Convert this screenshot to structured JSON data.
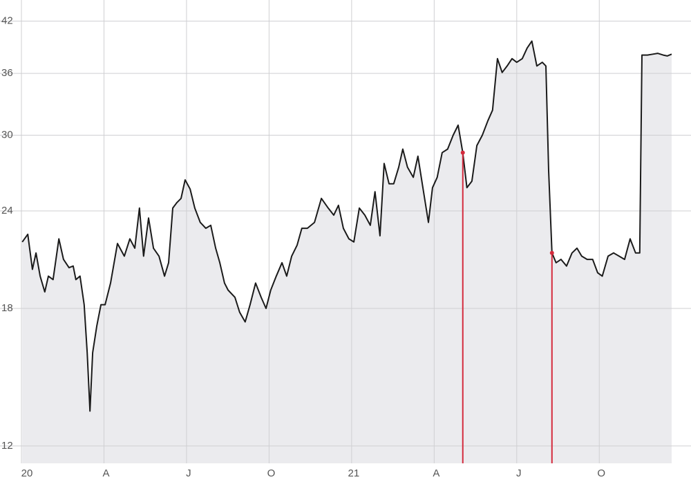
{
  "chart_data": {
    "type": "line",
    "xlim": [
      0,
      23.63
    ],
    "xticks": [
      {
        "value": 0,
        "label": "20"
      },
      {
        "value": 3,
        "label": "A"
      },
      {
        "value": 6,
        "label": "J"
      },
      {
        "value": 9,
        "label": "O"
      },
      {
        "value": 12,
        "label": "21"
      },
      {
        "value": 15,
        "label": "A"
      },
      {
        "value": 18,
        "label": "J"
      },
      {
        "value": 21,
        "label": "O"
      }
    ],
    "ylim": [
      11.4,
      44.7
    ],
    "yticks": [
      12,
      18,
      24,
      30,
      36,
      42
    ],
    "log_scale_y": true,
    "grid": true,
    "area_color": "#ebebee",
    "series": [
      {
        "color": "#1a1a1a",
        "x": [
          0.03,
          0.23,
          0.4,
          0.53,
          0.68,
          0.85,
          0.98,
          1.15,
          1.36,
          1.53,
          1.73,
          1.88,
          1.98,
          2.13,
          2.28,
          2.39,
          2.49,
          2.59,
          2.74,
          2.89,
          3.04,
          3.24,
          3.49,
          3.74,
          3.94,
          4.12,
          4.29,
          4.44,
          4.62,
          4.8,
          5.0,
          5.2,
          5.35,
          5.5,
          5.65,
          5.8,
          5.95,
          6.13,
          6.3,
          6.5,
          6.7,
          6.88,
          7.06,
          7.21,
          7.38,
          7.51,
          7.76,
          7.93,
          8.13,
          8.31,
          8.51,
          8.71,
          8.89,
          9.06,
          9.26,
          9.47,
          9.64,
          9.82,
          10.02,
          10.19,
          10.39,
          10.65,
          10.9,
          11.15,
          11.35,
          11.52,
          11.7,
          11.9,
          12.08,
          12.28,
          12.48,
          12.68,
          12.85,
          13.03,
          13.18,
          13.36,
          13.53,
          13.71,
          13.86,
          14.03,
          14.24,
          14.41,
          14.59,
          14.79,
          14.94,
          15.11,
          15.29,
          15.49,
          15.69,
          15.87,
          16.04,
          16.19,
          16.37,
          16.55,
          16.75,
          16.95,
          17.12,
          17.3,
          17.47,
          17.65,
          17.83,
          18.0,
          18.2,
          18.38,
          18.55,
          18.73,
          18.93,
          19.06,
          19.16,
          19.28,
          19.43,
          19.61,
          19.81,
          20.01,
          20.19,
          20.36,
          20.56,
          20.76,
          20.94,
          21.11,
          21.32,
          21.52,
          21.72,
          21.92,
          22.12,
          22.32,
          22.47,
          22.55,
          22.75,
          22.95,
          23.12,
          23.32,
          23.47,
          23.63
        ],
        "values": [
          21.9,
          22.4,
          20.2,
          21.2,
          19.8,
          18.9,
          19.8,
          19.6,
          22.1,
          20.8,
          20.3,
          20.4,
          19.6,
          19.8,
          18.2,
          15.8,
          13.3,
          15.8,
          17.1,
          18.2,
          18.2,
          19.4,
          21.8,
          21.0,
          22.1,
          21.5,
          24.2,
          21.0,
          23.5,
          21.5,
          21.0,
          19.8,
          20.6,
          24.2,
          24.6,
          24.9,
          26.3,
          25.6,
          24.2,
          23.2,
          22.8,
          23.0,
          21.5,
          20.6,
          19.4,
          19.0,
          18.6,
          17.8,
          17.3,
          18.2,
          19.4,
          18.6,
          18.0,
          19.0,
          19.8,
          20.6,
          19.8,
          21.0,
          21.7,
          22.8,
          22.8,
          23.2,
          24.9,
          24.2,
          23.7,
          24.4,
          22.8,
          22.1,
          21.9,
          24.2,
          23.7,
          23.0,
          25.4,
          22.3,
          27.6,
          26.0,
          26.0,
          27.3,
          28.8,
          27.3,
          26.5,
          28.2,
          25.7,
          23.2,
          25.7,
          26.5,
          28.5,
          28.8,
          30.0,
          30.9,
          28.5,
          25.7,
          26.2,
          29.1,
          30.0,
          31.3,
          32.3,
          37.6,
          36.1,
          36.8,
          37.6,
          37.2,
          37.6,
          38.8,
          39.6,
          36.8,
          37.2,
          36.8,
          27.0,
          21.2,
          20.6,
          20.8,
          20.4,
          21.2,
          21.5,
          21.0,
          20.8,
          20.8,
          20.0,
          19.8,
          21.0,
          21.2,
          21.0,
          20.8,
          22.1,
          21.2,
          21.2,
          38.0,
          38.0,
          38.1,
          38.2,
          38.0,
          37.9,
          38.1
        ]
      }
    ],
    "markers": {
      "color": "#d42a3c",
      "x": [
        16.04,
        19.28
      ],
      "y": [
        28.5,
        21.2
      ]
    }
  }
}
